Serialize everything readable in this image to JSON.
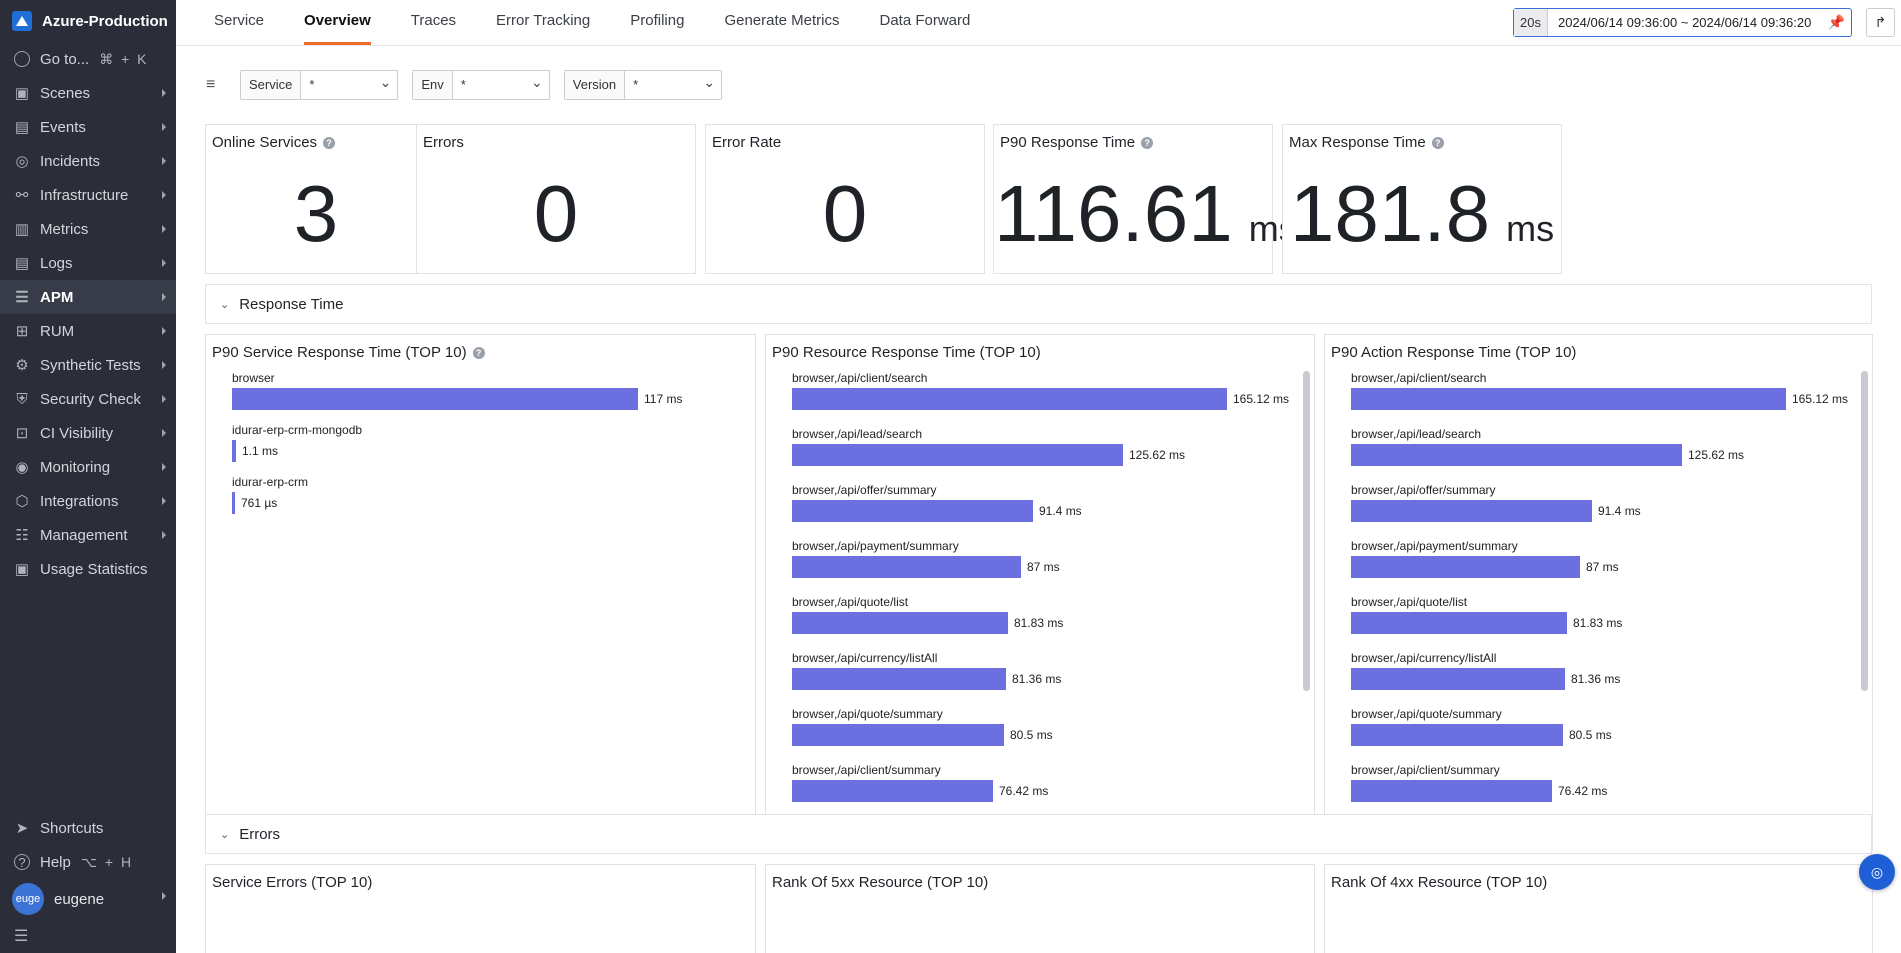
{
  "app": {
    "name": "Azure-Production"
  },
  "sidebar": {
    "goto": {
      "label": "Go to...",
      "shortcut": "⌘ + K"
    },
    "items": [
      {
        "label": "Scenes",
        "icon": "scenes-icon"
      },
      {
        "label": "Events",
        "icon": "events-icon"
      },
      {
        "label": "Incidents",
        "icon": "incidents-icon"
      },
      {
        "label": "Infrastructure",
        "icon": "infrastructure-icon"
      },
      {
        "label": "Metrics",
        "icon": "metrics-icon"
      },
      {
        "label": "Logs",
        "icon": "logs-icon"
      },
      {
        "label": "APM",
        "icon": "apm-icon"
      },
      {
        "label": "RUM",
        "icon": "rum-icon"
      },
      {
        "label": "Synthetic Tests",
        "icon": "synthetic-tests-icon"
      },
      {
        "label": "Security Check",
        "icon": "security-check-icon"
      },
      {
        "label": "CI Visibility",
        "icon": "ci-visibility-icon"
      },
      {
        "label": "Monitoring",
        "icon": "monitoring-icon"
      },
      {
        "label": "Integrations",
        "icon": "integrations-icon"
      },
      {
        "label": "Management",
        "icon": "management-icon"
      },
      {
        "label": "Usage Statistics",
        "icon": "usage-statistics-icon"
      }
    ],
    "shortcuts": "Shortcuts",
    "help": {
      "label": "Help",
      "shortcut": "⌥ + H"
    },
    "user": {
      "avatar": "euge",
      "name": "eugene"
    }
  },
  "tabs": [
    "Service",
    "Overview",
    "Traces",
    "Error Tracking",
    "Profiling",
    "Generate Metrics",
    "Data Forward"
  ],
  "time": {
    "quick": "20s",
    "range": "2024/06/14 09:36:00 ~ 2024/06/14 09:36:20"
  },
  "filters": [
    {
      "label": "Service",
      "value": "*"
    },
    {
      "label": "Env",
      "value": "*"
    },
    {
      "label": "Version",
      "value": "*"
    }
  ],
  "stats": [
    {
      "title": "Online Services",
      "value": "3",
      "unit": ""
    },
    {
      "title": "Errors",
      "value": "0",
      "unit": ""
    },
    {
      "title": "Error Rate",
      "value": "0",
      "unit": ""
    },
    {
      "title": "P90 Response Time",
      "value": "116.61",
      "unit": "ms"
    },
    {
      "title": "Max Response Time",
      "value": "181.8",
      "unit": "ms"
    }
  ],
  "sections": {
    "response_time": "Response Time",
    "errors": "Errors"
  },
  "panels": {
    "service_rt": {
      "title": "P90 Service Response Time (TOP 10)"
    },
    "resource_rt": {
      "title": "P90 Resource Response Time (TOP 10)"
    },
    "action_rt": {
      "title": "P90 Action Response Time (TOP 10)"
    },
    "service_errors": {
      "title": "Service Errors (TOP 10)"
    },
    "rank_5xx": {
      "title": "Rank Of 5xx Resource (TOP 10)"
    },
    "rank_4xx": {
      "title": "Rank Of 4xx Resource (TOP 10)"
    }
  },
  "colors": {
    "bar": "#6b6fe0",
    "accent": "#f06a2e",
    "primary": "#1f5fd6"
  },
  "chart_data": [
    {
      "type": "bar",
      "title": "P90 Service Response Time (TOP 10)",
      "categories": [
        "browser",
        "idurar-erp-crm-mongodb",
        "idurar-erp-crm"
      ],
      "values": [
        117,
        1.1,
        0.761
      ],
      "labels": [
        "117 ms",
        "1.1 ms",
        "761 µs"
      ],
      "unit": "ms"
    },
    {
      "type": "bar",
      "title": "P90 Resource Response Time (TOP 10)",
      "categories": [
        "browser,/api/client/search",
        "browser,/api/lead/search",
        "browser,/api/offer/summary",
        "browser,/api/payment/summary",
        "browser,/api/quote/list",
        "browser,/api/currency/listAll",
        "browser,/api/quote/summary",
        "browser,/api/client/summary"
      ],
      "values": [
        165.12,
        125.62,
        91.4,
        87,
        81.83,
        81.36,
        80.5,
        76.42
      ],
      "labels": [
        "165.12 ms",
        "125.62 ms",
        "91.4 ms",
        "87 ms",
        "81.83 ms",
        "81.36 ms",
        "80.5 ms",
        "76.42 ms"
      ],
      "unit": "ms"
    },
    {
      "type": "bar",
      "title": "P90 Action Response Time (TOP 10)",
      "categories": [
        "browser,/api/client/search",
        "browser,/api/lead/search",
        "browser,/api/offer/summary",
        "browser,/api/payment/summary",
        "browser,/api/quote/list",
        "browser,/api/currency/listAll",
        "browser,/api/quote/summary",
        "browser,/api/client/summary"
      ],
      "values": [
        165.12,
        125.62,
        91.4,
        87,
        81.83,
        81.36,
        80.5,
        76.42
      ],
      "labels": [
        "165.12 ms",
        "125.62 ms",
        "91.4 ms",
        "87 ms",
        "81.83 ms",
        "81.36 ms",
        "80.5 ms",
        "76.42 ms"
      ],
      "unit": "ms"
    }
  ]
}
